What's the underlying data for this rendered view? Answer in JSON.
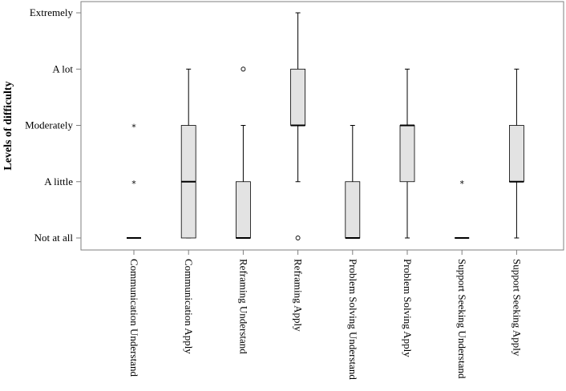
{
  "chart_data": {
    "type": "boxplot",
    "ylabel": "Levels of difficulty",
    "xlabel": "",
    "y_ticks": [
      "Not at all",
      "A little",
      "Moderately",
      "A lot",
      "Extremely"
    ],
    "ylim": [
      0,
      4
    ],
    "grid": false,
    "categories": [
      "Communication Understand",
      "Communication Apply",
      "Reframing Understand",
      "Reframing Apply",
      "Problem Solving Understand",
      "Problem Solving Apply",
      "Support Seeking Understand",
      "Support Seeking Apply"
    ],
    "boxes": [
      {
        "min": 0,
        "q1": 0,
        "median": 0,
        "q3": 0,
        "max": 0,
        "outliers": [],
        "extremes": [
          1,
          2
        ]
      },
      {
        "min": 0,
        "q1": 0,
        "median": 1,
        "q3": 2,
        "max": 3,
        "outliers": [],
        "extremes": []
      },
      {
        "min": 0,
        "q1": 0,
        "median": 0,
        "q3": 1,
        "max": 2,
        "outliers": [
          3
        ],
        "extremes": []
      },
      {
        "min": 1,
        "q1": 2,
        "median": 2,
        "q3": 3,
        "max": 4,
        "outliers": [
          0
        ],
        "extremes": []
      },
      {
        "min": 0,
        "q1": 0,
        "median": 0,
        "q3": 1,
        "max": 2,
        "outliers": [],
        "extremes": []
      },
      {
        "min": 0,
        "q1": 1,
        "median": 2,
        "q3": 2,
        "max": 3,
        "outliers": [],
        "extremes": []
      },
      {
        "min": 0,
        "q1": 0,
        "median": 0,
        "q3": 0,
        "max": 0,
        "outliers": [],
        "extremes": [
          1
        ]
      },
      {
        "min": 0,
        "q1": 1,
        "median": 1,
        "q3": 2,
        "max": 3,
        "outliers": [],
        "extremes": []
      }
    ],
    "colors": {
      "box_fill": "#e3e3e3",
      "stroke": "#000000",
      "axis": "#7f7f7f"
    }
  }
}
